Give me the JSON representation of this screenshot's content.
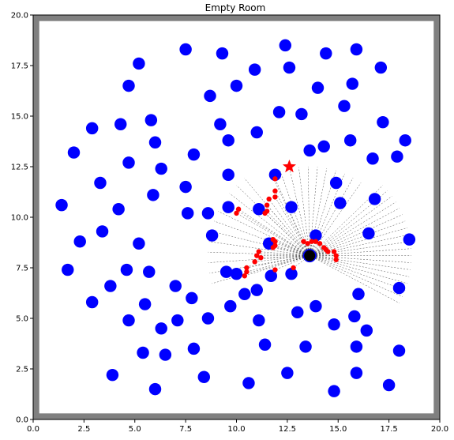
{
  "chart_data": {
    "type": "scatter",
    "title": "Empty Room",
    "xlim": [
      0,
      20
    ],
    "ylim": [
      0,
      20
    ],
    "x_ticks": [
      "0.0",
      "2.5",
      "5.0",
      "7.5",
      "10.0",
      "12.5",
      "15.0",
      "17.5",
      "20.0"
    ],
    "y_ticks": [
      "0.0",
      "2.5",
      "5.0",
      "7.5",
      "10.0",
      "12.5",
      "15.0",
      "17.5",
      "20.0"
    ],
    "grid": false,
    "wall_color": "#808080",
    "room_bounds": [
      0.3,
      19.7
    ],
    "colors": {
      "obstacle": "#0000ff",
      "lidar_hit": "#ff0000",
      "ray": "#000000",
      "robot": "#000000",
      "goal": "#ff0000"
    },
    "robot": {
      "x": 13.6,
      "y": 8.1
    },
    "goal": {
      "x": 12.6,
      "y": 12.5
    },
    "obstacles": [
      [
        12.4,
        18.5
      ],
      [
        7.5,
        18.3
      ],
      [
        9.3,
        18.1
      ],
      [
        14.4,
        18.1
      ],
      [
        15.9,
        18.3
      ],
      [
        5.2,
        17.6
      ],
      [
        10.9,
        17.3
      ],
      [
        12.6,
        17.4
      ],
      [
        17.1,
        17.4
      ],
      [
        15.7,
        16.6
      ],
      [
        4.7,
        16.5
      ],
      [
        10.0,
        16.5
      ],
      [
        14.0,
        16.4
      ],
      [
        8.7,
        16.0
      ],
      [
        15.3,
        15.5
      ],
      [
        12.1,
        15.2
      ],
      [
        13.2,
        15.1
      ],
      [
        5.8,
        14.8
      ],
      [
        4.3,
        14.6
      ],
      [
        2.9,
        14.4
      ],
      [
        9.2,
        14.6
      ],
      [
        17.2,
        14.7
      ],
      [
        11.0,
        14.2
      ],
      [
        6.0,
        13.7
      ],
      [
        9.6,
        13.8
      ],
      [
        15.6,
        13.8
      ],
      [
        18.3,
        13.8
      ],
      [
        14.3,
        13.5
      ],
      [
        13.6,
        13.3
      ],
      [
        2.0,
        13.2
      ],
      [
        7.9,
        13.1
      ],
      [
        16.7,
        12.9
      ],
      [
        17.9,
        13.0
      ],
      [
        4.7,
        12.7
      ],
      [
        6.3,
        12.4
      ],
      [
        11.9,
        12.1
      ],
      [
        9.6,
        12.1
      ],
      [
        14.9,
        11.7
      ],
      [
        3.3,
        11.7
      ],
      [
        7.5,
        11.5
      ],
      [
        5.9,
        11.1
      ],
      [
        16.8,
        10.9
      ],
      [
        1.4,
        10.6
      ],
      [
        15.1,
        10.7
      ],
      [
        4.2,
        10.4
      ],
      [
        9.6,
        10.5
      ],
      [
        11.1,
        10.4
      ],
      [
        12.7,
        10.5
      ],
      [
        7.6,
        10.2
      ],
      [
        8.6,
        10.2
      ],
      [
        3.4,
        9.3
      ],
      [
        8.8,
        9.1
      ],
      [
        13.9,
        9.1
      ],
      [
        16.5,
        9.2
      ],
      [
        18.5,
        8.9
      ],
      [
        2.3,
        8.8
      ],
      [
        5.2,
        8.7
      ],
      [
        11.6,
        8.7
      ],
      [
        1.7,
        7.4
      ],
      [
        4.6,
        7.4
      ],
      [
        5.7,
        7.3
      ],
      [
        9.5,
        7.3
      ],
      [
        10.0,
        7.2
      ],
      [
        11.7,
        7.1
      ],
      [
        12.7,
        7.2
      ],
      [
        7.0,
        6.6
      ],
      [
        3.8,
        6.6
      ],
      [
        11.0,
        6.4
      ],
      [
        10.4,
        6.2
      ],
      [
        16.0,
        6.2
      ],
      [
        7.8,
        6.0
      ],
      [
        18.0,
        6.5
      ],
      [
        2.9,
        5.8
      ],
      [
        5.5,
        5.7
      ],
      [
        9.7,
        5.6
      ],
      [
        13.9,
        5.6
      ],
      [
        13.0,
        5.3
      ],
      [
        15.8,
        5.1
      ],
      [
        4.7,
        4.9
      ],
      [
        7.1,
        4.9
      ],
      [
        8.6,
        5.0
      ],
      [
        11.1,
        4.9
      ],
      [
        14.8,
        4.7
      ],
      [
        16.4,
        4.4
      ],
      [
        6.3,
        4.5
      ],
      [
        11.4,
        3.7
      ],
      [
        7.9,
        3.5
      ],
      [
        13.4,
        3.6
      ],
      [
        15.9,
        3.6
      ],
      [
        18.0,
        3.4
      ],
      [
        5.4,
        3.3
      ],
      [
        6.5,
        3.2
      ],
      [
        3.9,
        2.2
      ],
      [
        8.4,
        2.1
      ],
      [
        12.5,
        2.3
      ],
      [
        15.9,
        2.3
      ],
      [
        10.6,
        1.8
      ],
      [
        17.5,
        1.7
      ],
      [
        6.0,
        1.5
      ],
      [
        14.8,
        1.4
      ]
    ],
    "lidar_hits": [
      [
        11.9,
        11.9
      ],
      [
        11.9,
        11.3
      ],
      [
        11.9,
        11.0
      ],
      [
        11.6,
        10.9
      ],
      [
        11.5,
        10.6
      ],
      [
        11.5,
        10.3
      ],
      [
        11.4,
        10.2
      ],
      [
        10.1,
        10.4
      ],
      [
        10.0,
        10.2
      ],
      [
        11.8,
        8.9
      ],
      [
        11.9,
        8.8
      ],
      [
        11.9,
        8.6
      ],
      [
        11.8,
        8.5
      ],
      [
        11.1,
        8.3
      ],
      [
        11.0,
        8.1
      ],
      [
        11.2,
        8.0
      ],
      [
        10.9,
        7.8
      ],
      [
        10.5,
        7.5
      ],
      [
        10.5,
        7.3
      ],
      [
        10.4,
        7.1
      ],
      [
        11.9,
        7.4
      ],
      [
        12.8,
        7.5
      ],
      [
        13.3,
        8.8
      ],
      [
        13.5,
        8.7
      ],
      [
        13.7,
        8.8
      ],
      [
        13.9,
        8.8
      ],
      [
        14.1,
        8.7
      ],
      [
        14.3,
        8.5
      ],
      [
        14.4,
        8.4
      ],
      [
        14.5,
        8.3
      ],
      [
        14.8,
        8.3
      ],
      [
        14.9,
        8.1
      ],
      [
        14.9,
        7.9
      ]
    ]
  }
}
